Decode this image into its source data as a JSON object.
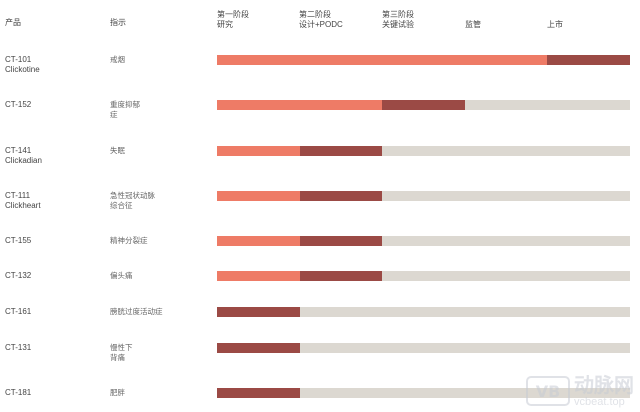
{
  "colors": {
    "completed": "#ee7b66",
    "current": "#9b4a45",
    "remaining": "#dcd8d1"
  },
  "header": {
    "product": "产品",
    "indication": "指示",
    "stages": [
      "第一阶段\n研究",
      "第二阶段\n设计+PODC",
      "第三阶段\n关键试验",
      "监管",
      "上市"
    ]
  },
  "rows": [
    {
      "product": "CT-101\nClickotine",
      "indication": "戒烟",
      "completed_stages": 4,
      "current_stage": 5
    },
    {
      "product": "CT-152",
      "indication": "重度抑郁\n症",
      "completed_stages": 2,
      "current_stage": 3
    },
    {
      "product": "CT-141\nClickadian",
      "indication": "失眠",
      "completed_stages": 1,
      "current_stage": 2
    },
    {
      "product": "CT-111\nClickheart",
      "indication": "急性冠状动脉\n综合征",
      "completed_stages": 1,
      "current_stage": 2
    },
    {
      "product": "CT-155",
      "indication": "精神分裂症",
      "completed_stages": 1,
      "current_stage": 2
    },
    {
      "product": "CT-132",
      "indication": "偏头痛",
      "completed_stages": 1,
      "current_stage": 2
    },
    {
      "product": "CT-161",
      "indication": "膀胱过度活动症",
      "completed_stages": 0,
      "current_stage": 1
    },
    {
      "product": "CT-131",
      "indication": "慢性下\n背痛",
      "completed_stages": 0,
      "current_stage": 1
    },
    {
      "product": "CT-181",
      "indication": "肥胖",
      "completed_stages": 0,
      "current_stage": 1
    }
  ],
  "watermark": {
    "logo": "VB",
    "name": "动脉网",
    "url": "vcbeat.top"
  }
}
